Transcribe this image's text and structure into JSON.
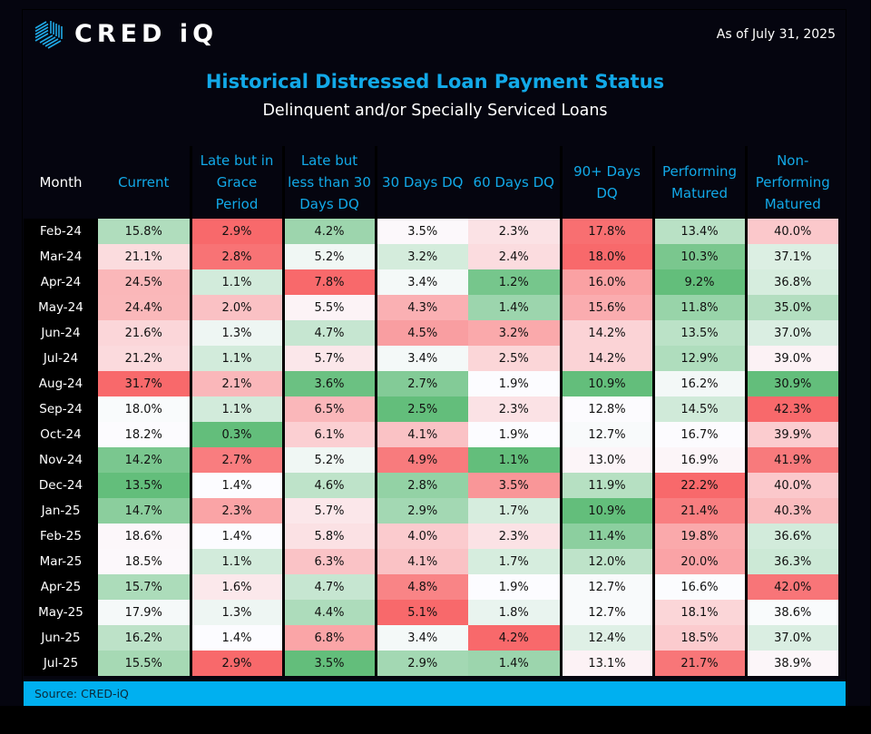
{
  "brand": {
    "name": "CRED iQ",
    "logo_icon": "cube-hatched-icon"
  },
  "as_of": "As of July 31, 2025",
  "source": "Source:  CRED-iQ",
  "colors": {
    "accent": "#12a9e8",
    "source_bar": "#00b0f0",
    "background": "#05050f",
    "high_bad": "#f8696b",
    "low_good": "#63be7b",
    "mid": "#fcfcff"
  },
  "chart_data": {
    "type": "heatmap",
    "title": "Historical Distressed Loan Payment Status",
    "subtitle": "Delinquent and/or Specially Serviced Loans",
    "row_header": "Month",
    "columns": [
      "Current",
      "Late but in Grace Period",
      "Late but less than 30 Days DQ",
      "30 Days DQ",
      "60 Days DQ",
      "90+ Days DQ",
      "Performing Matured",
      "Non-Performing Matured"
    ],
    "column_labels": [
      [
        "Current"
      ],
      [
        "Late but in",
        "Grace",
        "Period"
      ],
      [
        "Late but",
        "less than 30",
        "Days DQ"
      ],
      [
        "30 Days DQ"
      ],
      [
        "60 Days DQ"
      ],
      [
        "90+ Days",
        "DQ"
      ],
      [
        "Performing",
        "Matured"
      ],
      [
        "Non-",
        "Performing",
        "Matured"
      ]
    ],
    "color_scale_by_column": "green = lower, red = higher (column-wise)",
    "unit": "%",
    "rows": [
      {
        "month": "Feb-24",
        "values": [
          15.8,
          2.9,
          4.2,
          3.5,
          2.3,
          17.8,
          13.4,
          40.0
        ]
      },
      {
        "month": "Mar-24",
        "values": [
          21.1,
          2.8,
          5.2,
          3.2,
          2.4,
          18.0,
          10.3,
          37.1
        ]
      },
      {
        "month": "Apr-24",
        "values": [
          24.5,
          1.1,
          7.8,
          3.4,
          1.2,
          16.0,
          9.2,
          36.8
        ]
      },
      {
        "month": "May-24",
        "values": [
          24.4,
          2.0,
          5.5,
          4.3,
          1.4,
          15.6,
          11.8,
          35.0
        ]
      },
      {
        "month": "Jun-24",
        "values": [
          21.6,
          1.3,
          4.7,
          4.5,
          3.2,
          14.2,
          13.5,
          37.0
        ]
      },
      {
        "month": "Jul-24",
        "values": [
          21.2,
          1.1,
          5.7,
          3.4,
          2.5,
          14.2,
          12.9,
          39.0
        ]
      },
      {
        "month": "Aug-24",
        "values": [
          31.7,
          2.1,
          3.6,
          2.7,
          1.9,
          10.9,
          16.2,
          30.9
        ]
      },
      {
        "month": "Sep-24",
        "values": [
          18.0,
          1.1,
          6.5,
          2.5,
          2.3,
          12.8,
          14.5,
          42.3
        ]
      },
      {
        "month": "Oct-24",
        "values": [
          18.2,
          0.3,
          6.1,
          4.1,
          1.9,
          12.7,
          16.7,
          39.9
        ]
      },
      {
        "month": "Nov-24",
        "values": [
          14.2,
          2.7,
          5.2,
          4.9,
          1.1,
          13.0,
          16.9,
          41.9
        ]
      },
      {
        "month": "Dec-24",
        "values": [
          13.5,
          1.4,
          4.6,
          2.8,
          3.5,
          11.9,
          22.2,
          40.0
        ]
      },
      {
        "month": "Jan-25",
        "values": [
          14.7,
          2.3,
          5.7,
          2.9,
          1.7,
          10.9,
          21.4,
          40.3
        ]
      },
      {
        "month": "Feb-25",
        "values": [
          18.6,
          1.4,
          5.8,
          4.0,
          2.3,
          11.4,
          19.8,
          36.6
        ]
      },
      {
        "month": "Mar-25",
        "values": [
          18.5,
          1.1,
          6.3,
          4.1,
          1.7,
          12.0,
          20.0,
          36.3
        ]
      },
      {
        "month": "Apr-25",
        "values": [
          15.7,
          1.6,
          4.7,
          4.8,
          1.9,
          12.7,
          16.6,
          42.0
        ]
      },
      {
        "month": "May-25",
        "values": [
          17.9,
          1.3,
          4.4,
          5.1,
          1.8,
          12.7,
          18.1,
          38.6
        ]
      },
      {
        "month": "Jun-25",
        "values": [
          16.2,
          1.4,
          6.8,
          3.4,
          4.2,
          12.4,
          18.5,
          37.0
        ]
      },
      {
        "month": "Jul-25",
        "values": [
          15.5,
          2.9,
          3.5,
          2.9,
          1.4,
          13.1,
          21.7,
          38.9
        ]
      }
    ]
  }
}
